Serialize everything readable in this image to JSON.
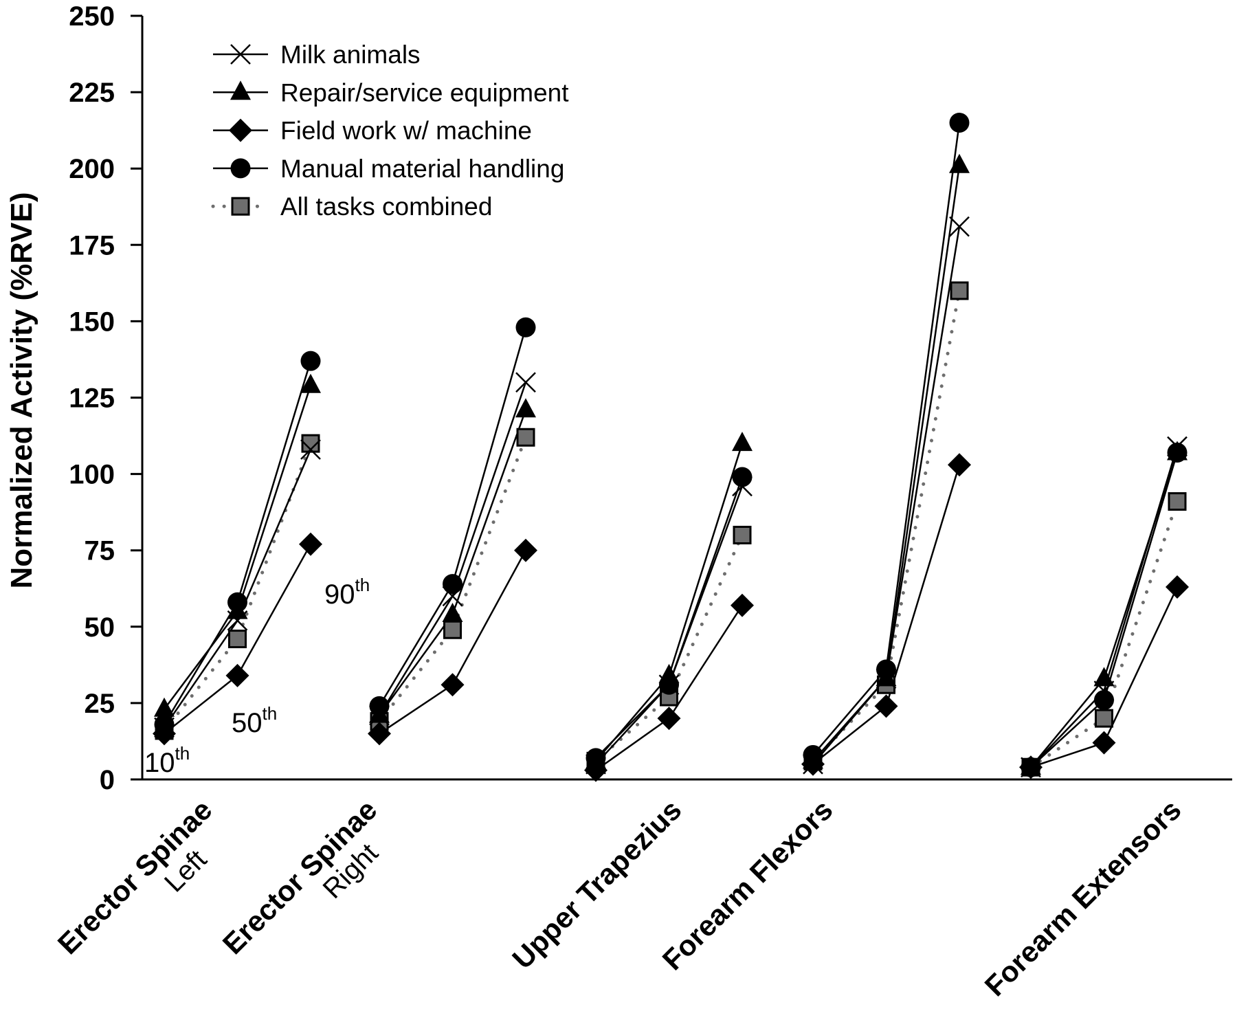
{
  "chart_data": {
    "type": "line",
    "title": "",
    "ylabel": "Normalized Activity (%RVE)",
    "xlabel": "",
    "ylim": [
      0,
      250
    ],
    "yticks": [
      0,
      25,
      50,
      75,
      100,
      125,
      150,
      175,
      200,
      225,
      250
    ],
    "grid": false,
    "legend_position": "top-left",
    "percentiles": [
      "10th",
      "50th",
      "90th"
    ],
    "percentile_annotations": [
      {
        "num": "10",
        "sup": "th"
      },
      {
        "num": "50",
        "sup": "th"
      },
      {
        "num": "90",
        "sup": "th"
      }
    ],
    "categories": [
      {
        "main": "Erector Spinae",
        "sub": "Left"
      },
      {
        "main": "Erector Spinae",
        "sub": "Right"
      },
      {
        "main": "Upper Trapezius",
        "sub": ""
      },
      {
        "main": "Forearm Flexors",
        "sub": ""
      },
      {
        "main": "Forearm Extensors",
        "sub": ""
      }
    ],
    "series": [
      {
        "name": "Milk animals",
        "marker": "x",
        "line": "solid",
        "color": "#000000",
        "values": [
          [
            17,
            52,
            108
          ],
          [
            21,
            60,
            130
          ],
          [
            5,
            31,
            96
          ],
          [
            5,
            33,
            181
          ],
          [
            4,
            29,
            109
          ]
        ]
      },
      {
        "name": "Repair/service equipment",
        "marker": "triangle",
        "line": "solid",
        "color": "#000000",
        "values": [
          [
            23,
            55,
            129
          ],
          [
            21,
            54,
            121
          ],
          [
            6,
            34,
            110
          ],
          [
            6,
            33,
            201
          ],
          [
            4,
            33,
            107
          ]
        ]
      },
      {
        "name": "Field work w/ machine",
        "marker": "diamond",
        "line": "solid",
        "color": "#000000",
        "values": [
          [
            15,
            34,
            77
          ],
          [
            15,
            31,
            75
          ],
          [
            3,
            20,
            57
          ],
          [
            5,
            24,
            103
          ],
          [
            4,
            12,
            63
          ]
        ]
      },
      {
        "name": "Manual material handling",
        "marker": "circle",
        "line": "solid",
        "color": "#000000",
        "values": [
          [
            18,
            58,
            137
          ],
          [
            24,
            64,
            148
          ],
          [
            7,
            31,
            99
          ],
          [
            8,
            36,
            215
          ],
          [
            4,
            26,
            107
          ]
        ]
      },
      {
        "name": "All tasks combined",
        "marker": "square",
        "line": "dotted",
        "color": "#6e6e6e",
        "values": [
          [
            16,
            46,
            110
          ],
          [
            19,
            49,
            112
          ],
          [
            6,
            27,
            80
          ],
          [
            6,
            31,
            160
          ],
          [
            4,
            20,
            91
          ]
        ]
      }
    ]
  }
}
